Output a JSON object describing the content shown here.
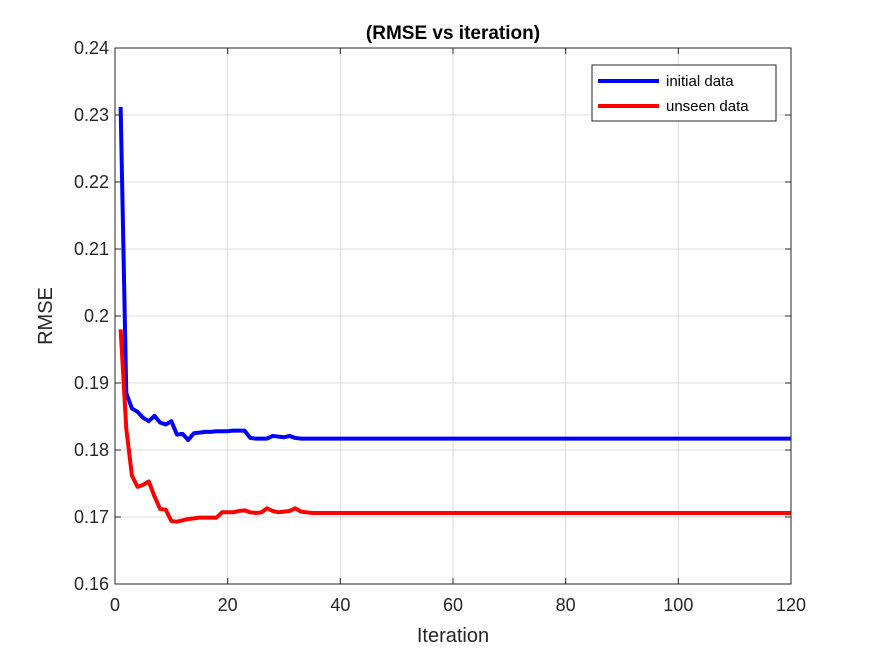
{
  "chart_data": {
    "type": "line",
    "title": "(RMSE vs iteration)",
    "xlabel": "Iteration",
    "ylabel": "RMSE",
    "xlim": [
      0,
      120
    ],
    "ylim": [
      0.16,
      0.24
    ],
    "xticks": [
      0,
      20,
      40,
      60,
      80,
      100,
      120
    ],
    "yticks": [
      0.16,
      0.17,
      0.18,
      0.19,
      0.2,
      0.21,
      0.22,
      0.23,
      0.24
    ],
    "xtick_labels": [
      "0",
      "20",
      "40",
      "60",
      "80",
      "100",
      "120"
    ],
    "ytick_labels": [
      "0.16",
      "0.17",
      "0.18",
      "0.19",
      "0.2",
      "0.21",
      "0.22",
      "0.23",
      "0.24"
    ],
    "grid": true,
    "legend_position": "top-right",
    "series": [
      {
        "name": "initial data",
        "color": "#0000ff",
        "x": [
          1,
          2,
          3,
          4,
          5,
          6,
          7,
          8,
          9,
          10,
          11,
          12,
          13,
          14,
          15,
          16,
          17,
          18,
          19,
          20,
          21,
          22,
          23,
          24,
          25,
          26,
          27,
          28,
          29,
          30,
          31,
          32,
          33,
          34,
          35,
          36,
          37,
          38,
          40,
          50,
          60,
          70,
          80,
          90,
          100,
          110,
          120
        ],
        "y": [
          0.2312,
          0.1885,
          0.1862,
          0.1857,
          0.1848,
          0.1843,
          0.1851,
          0.1841,
          0.1838,
          0.1843,
          0.1823,
          0.1824,
          0.1815,
          0.1825,
          0.1826,
          0.1827,
          0.1827,
          0.1828,
          0.1828,
          0.1828,
          0.1829,
          0.1829,
          0.1829,
          0.1818,
          0.1817,
          0.1817,
          0.1817,
          0.1821,
          0.182,
          0.1819,
          0.1821,
          0.1818,
          0.1817,
          0.1817,
          0.1817,
          0.1817,
          0.1817,
          0.1817,
          0.1817,
          0.1817,
          0.1817,
          0.1817,
          0.1817,
          0.1817,
          0.1817,
          0.1817,
          0.1817
        ]
      },
      {
        "name": "unseen data",
        "color": "#ff0000",
        "x": [
          1,
          2,
          3,
          4,
          5,
          6,
          7,
          8,
          9,
          10,
          11,
          12,
          13,
          14,
          15,
          16,
          17,
          18,
          19,
          20,
          21,
          22,
          23,
          24,
          25,
          26,
          27,
          28,
          29,
          30,
          31,
          32,
          33,
          34,
          35,
          36,
          37,
          38,
          40,
          50,
          60,
          70,
          80,
          90,
          100,
          110,
          120
        ],
        "y": [
          0.198,
          0.1832,
          0.1762,
          0.1745,
          0.1748,
          0.1753,
          0.1731,
          0.1712,
          0.1711,
          0.1694,
          0.1693,
          0.1695,
          0.1697,
          0.1698,
          0.1699,
          0.1699,
          0.1699,
          0.1699,
          0.1707,
          0.1707,
          0.1707,
          0.1709,
          0.171,
          0.1707,
          0.1706,
          0.1707,
          0.1713,
          0.1709,
          0.1707,
          0.1708,
          0.1709,
          0.1713,
          0.1708,
          0.1707,
          0.1706,
          0.1706,
          0.1706,
          0.1706,
          0.1706,
          0.1706,
          0.1706,
          0.1706,
          0.1706,
          0.1706,
          0.1706,
          0.1706,
          0.1706
        ]
      }
    ]
  }
}
